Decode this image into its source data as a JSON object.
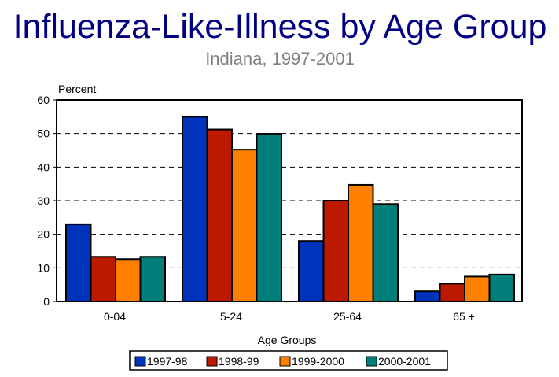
{
  "chart_data": {
    "type": "bar",
    "title": "Influenza-Like-Illness by Age Group",
    "subtitle": "Indiana, 1997-2001",
    "ylabel": "Percent",
    "xlabel": "Age Groups",
    "ylim": [
      0,
      60
    ],
    "yticks": [
      "0",
      "10",
      "20",
      "30",
      "40",
      "50",
      "60"
    ],
    "grid": true,
    "legend_position": "bottom",
    "categories": [
      "0-04",
      "5-24",
      "25-64",
      "65 +"
    ],
    "series": [
      {
        "name": "1997-98",
        "color": "#0033bb",
        "values": [
          23,
          55,
          18,
          3
        ]
      },
      {
        "name": "1998-99",
        "color": "#bb1a00",
        "values": [
          13.3,
          51.2,
          30,
          5.3
        ]
      },
      {
        "name": "1999-2000",
        "color": "#ff8000",
        "values": [
          12.6,
          45.2,
          34.7,
          7.4
        ]
      },
      {
        "name": "2000-2001",
        "color": "#007f7a",
        "values": [
          13.3,
          49.9,
          29,
          8
        ]
      }
    ]
  }
}
